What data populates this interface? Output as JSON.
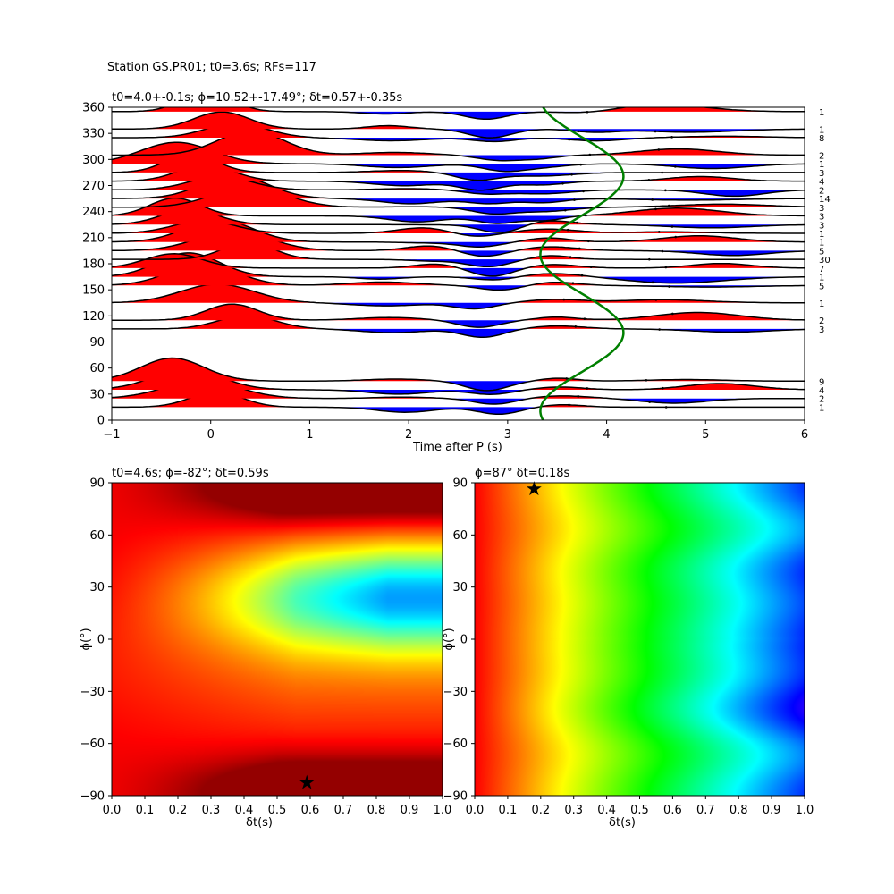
{
  "figure": {
    "suptitle": "Station GS.PR01; t0=3.6s; RFs=117"
  },
  "chart_data": [
    {
      "type": "line",
      "title": "t0=4.0+-0.1s; ϕ=10.52+-17.49°; δt=0.57+-0.35s",
      "xlabel": "Time after P (s)",
      "ylabel": "",
      "xlim": [
        -1,
        6
      ],
      "ylim": [
        0,
        360
      ],
      "xticks": [
        "−1",
        "0",
        "1",
        "2",
        "3",
        "4",
        "5",
        "6"
      ],
      "yticks": [
        "0",
        "30",
        "60",
        "90",
        "120",
        "150",
        "180",
        "210",
        "240",
        "270",
        "300",
        "330",
        "360"
      ],
      "grid": false,
      "fill_positive": "#ff0000",
      "fill_negative": "#0000ff",
      "trace_color": "#000000",
      "backazimuth_bins": [
        {
          "baz": 15,
          "count": "1"
        },
        {
          "baz": 25,
          "count": "2"
        },
        {
          "baz": 35,
          "count": "4"
        },
        {
          "baz": 45,
          "count": "9"
        },
        {
          "baz": 105,
          "count": "3"
        },
        {
          "baz": 115,
          "count": "2"
        },
        {
          "baz": 135,
          "count": "1"
        },
        {
          "baz": 155,
          "count": "5"
        },
        {
          "baz": 165,
          "count": "1"
        },
        {
          "baz": 175,
          "count": "7"
        },
        {
          "baz": 185,
          "count": "30"
        },
        {
          "baz": 195,
          "count": "5"
        },
        {
          "baz": 205,
          "count": "1"
        },
        {
          "baz": 215,
          "count": "1"
        },
        {
          "baz": 225,
          "count": "3"
        },
        {
          "baz": 235,
          "count": "3"
        },
        {
          "baz": 245,
          "count": "3"
        },
        {
          "baz": 255,
          "count": "14"
        },
        {
          "baz": 265,
          "count": "2"
        },
        {
          "baz": 275,
          "count": "4"
        },
        {
          "baz": 285,
          "count": "3"
        },
        {
          "baz": 295,
          "count": "1"
        },
        {
          "baz": 305,
          "count": "2"
        },
        {
          "baz": 325,
          "count": "8"
        },
        {
          "baz": 335,
          "count": "1"
        },
        {
          "baz": 355,
          "count": "1"
        }
      ],
      "predicted_ps_curve": {
        "color": "#008000",
        "mean_time": 3.75,
        "amplitude": 0.42,
        "phase_deg": 10.52
      }
    },
    {
      "type": "heatmap",
      "title": "t0=4.6s; ϕ=-82°; δt=0.59s",
      "xlabel": "δt(s)",
      "ylabel": "ϕ(°)",
      "xlim": [
        0.0,
        1.0
      ],
      "ylim": [
        -90,
        90
      ],
      "xticks": [
        "0.0",
        "0.1",
        "0.2",
        "0.3",
        "0.4",
        "0.5",
        "0.6",
        "0.7",
        "0.8",
        "0.9",
        "1.0"
      ],
      "yticks": [
        "−90",
        "−60",
        "−30",
        "0",
        "30",
        "60",
        "90"
      ],
      "colormap": "jet",
      "best_fit": {
        "dt": 0.59,
        "phi": -82
      }
    },
    {
      "type": "heatmap",
      "title": "ϕ=87° δt=0.18s",
      "xlabel": "δt(s)",
      "ylabel": "ϕ(°)",
      "xlim": [
        0.0,
        1.0
      ],
      "ylim": [
        -90,
        90
      ],
      "xticks": [
        "0.0",
        "0.1",
        "0.2",
        "0.3",
        "0.4",
        "0.5",
        "0.6",
        "0.7",
        "0.8",
        "0.9",
        "1.0"
      ],
      "yticks": [
        "−90",
        "−60",
        "−30",
        "0",
        "30",
        "60",
        "90"
      ],
      "colormap": "hsv",
      "best_fit": {
        "dt": 0.18,
        "phi": 87
      }
    }
  ]
}
